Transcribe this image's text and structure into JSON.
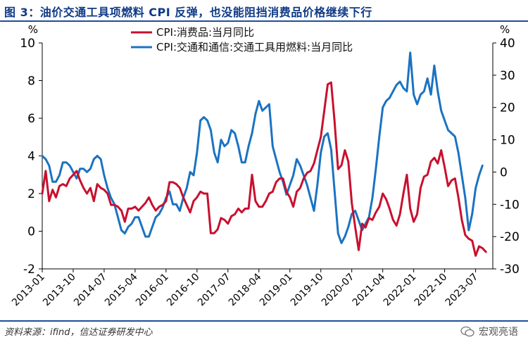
{
  "header": {
    "title": "图 3：油价交通工具项燃料 CPI 反弹，也没能阻挡消费品价格继续下行"
  },
  "footer": {
    "source": "资料来源：ifind，信达证券研发中心",
    "watermark": "宏观亮语"
  },
  "colors": {
    "series1": "#c8102e",
    "series2": "#1a73c2",
    "accent": "#1f4e9c"
  },
  "chart_data": {
    "type": "line",
    "left_axis_unit": "%",
    "right_axis_unit": "%",
    "ylim_left": [
      -2,
      10
    ],
    "ylim_right": [
      -30,
      40
    ],
    "left_ticks": [
      -2,
      0,
      2,
      4,
      6,
      8,
      10
    ],
    "right_ticks": [
      -30,
      -20,
      -10,
      0,
      10,
      20,
      30,
      40
    ],
    "x_tick_labels": [
      "2013-01",
      "2013-10",
      "2014-07",
      "2015-04",
      "2016-01",
      "2016-10",
      "2017-07",
      "2018-04",
      "2019-01",
      "2019-10",
      "2020-07",
      "2021-04",
      "2022-01",
      "2022-10",
      "2023-07"
    ],
    "x_start": "2013-01",
    "x_end": "2023-12",
    "series": [
      {
        "name": "CPI:消费品:当月同比",
        "axis": "left",
        "values": [
          2.0,
          3.2,
          1.6,
          2.2,
          1.8,
          2.4,
          2.5,
          2.4,
          2.8,
          3.0,
          3.2,
          2.7,
          2.3,
          2.0,
          2.3,
          1.6,
          2.5,
          2.3,
          2.2,
          2.0,
          1.4,
          1.4,
          1.3,
          1.1,
          0.5,
          1.2,
          1.2,
          1.3,
          1.1,
          1.3,
          1.5,
          1.8,
          1.4,
          1.1,
          1.3,
          1.4,
          1.6,
          2.6,
          2.6,
          2.5,
          2.3,
          1.8,
          1.4,
          1.0,
          1.6,
          1.8,
          2.1,
          2.0,
          2.0,
          -0.1,
          -0.1,
          0.1,
          0.7,
          0.6,
          0.4,
          0.8,
          0.9,
          1.2,
          1.0,
          1.2,
          1.2,
          3.0,
          1.6,
          1.3,
          1.3,
          1.6,
          2.0,
          2.1,
          2.6,
          2.8,
          2.8,
          2.1,
          1.8,
          1.3,
          2.1,
          2.3,
          2.8,
          3.1,
          3.2,
          3.6,
          4.3,
          5.0,
          6.4,
          7.8,
          7.9,
          5.8,
          3.3,
          3.5,
          4.3,
          3.7,
          1.5,
          0.2,
          -1.0,
          0.4,
          0.2,
          0.7,
          0.6,
          1.0,
          1.3,
          2.0,
          1.7,
          1.2,
          0.6,
          0.3,
          0.9,
          2.0,
          3.0,
          1.2,
          0.5,
          0.9,
          2.3,
          2.9,
          3.0,
          3.7,
          3.9,
          3.6,
          4.3,
          3.4,
          2.4,
          2.7,
          2.8,
          1.8,
          0.6,
          -0.2,
          -0.4,
          -0.5,
          -1.3,
          -0.8,
          -0.9,
          -1.1
        ]
      },
      {
        "name": "CPI:交通和通信:交通工具用燃料:当月同比",
        "axis": "right",
        "values": [
          5,
          4,
          2,
          -3,
          -3,
          -1,
          3,
          3,
          2,
          0,
          -2,
          1,
          1,
          0,
          1,
          4,
          5,
          4,
          -1,
          -5,
          -8,
          -10,
          -14,
          -18,
          -19,
          -17,
          -16,
          -14,
          -14,
          -17,
          -20,
          -20,
          -17,
          -14,
          -13,
          -11,
          -8,
          -6,
          -10,
          -10,
          -12,
          -8,
          -5,
          0,
          -1,
          6,
          16,
          17,
          16,
          13,
          6,
          3,
          10,
          8,
          9,
          13,
          12,
          8,
          3,
          3,
          8,
          12,
          18,
          22,
          19,
          20,
          21,
          8,
          4,
          0,
          -3,
          -7,
          -4,
          -1,
          4,
          2,
          -1,
          -4,
          -8,
          -12,
          -4,
          6,
          11,
          12,
          7,
          -6,
          -19,
          -22,
          -20,
          -17,
          -13,
          -12,
          -15,
          -18,
          -16,
          -14,
          -8,
          1,
          11,
          20,
          22,
          23,
          25,
          27,
          28,
          26,
          25,
          37,
          24,
          21,
          24,
          25,
          29,
          24,
          33,
          25,
          19,
          16,
          13,
          12,
          11,
          6,
          -1,
          -8,
          -18,
          -13,
          -5,
          -1,
          2
        ]
      }
    ]
  }
}
